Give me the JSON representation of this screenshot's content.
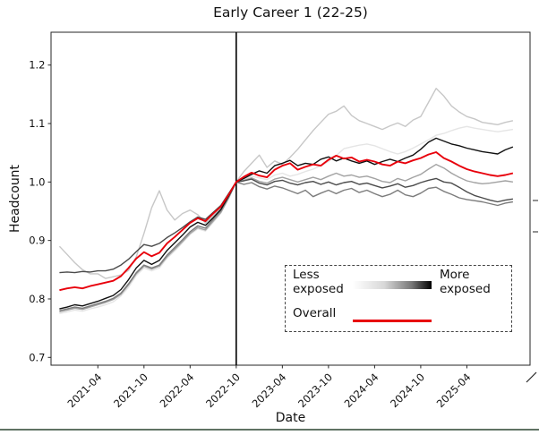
{
  "page": {
    "divider_color": "#5f7264"
  },
  "chart_data": {
    "type": "line",
    "title": "Early Career 1 (22-25)",
    "xlabel": "Date",
    "ylabel": "Headcount",
    "ylim": [
      0.687,
      1.256
    ],
    "grid": false,
    "yticks": [
      0.7,
      0.8,
      0.9,
      1.0,
      1.1,
      1.2
    ],
    "xtick_labels": [
      "2021-04",
      "2021-10",
      "2022-04",
      "2022-10",
      "2023-04",
      "2023-10",
      "2024-04",
      "2024-10",
      "2025-04"
    ],
    "vline_x": "2022-10",
    "legend": {
      "less_label": "Less exposed",
      "more_label": "More exposed",
      "overall_label": "Overall",
      "overall_color": "#e8000b",
      "gradient": [
        "#ffffff",
        "#000000"
      ],
      "position": "lower right",
      "border": "dashed"
    },
    "x_monthly": [
      "2020-11",
      "2020-12",
      "2021-01",
      "2021-02",
      "2021-03",
      "2021-04",
      "2021-05",
      "2021-06",
      "2021-07",
      "2021-08",
      "2021-09",
      "2021-10",
      "2021-11",
      "2021-12",
      "2022-01",
      "2022-02",
      "2022-03",
      "2022-04",
      "2022-05",
      "2022-06",
      "2022-07",
      "2022-08",
      "2022-09",
      "2022-10",
      "2022-11",
      "2022-12",
      "2023-01",
      "2023-02",
      "2023-03",
      "2023-04",
      "2023-05",
      "2023-06",
      "2023-07",
      "2023-08",
      "2023-09",
      "2023-10",
      "2023-11",
      "2023-12",
      "2024-01",
      "2024-02",
      "2024-03",
      "2024-04",
      "2024-05",
      "2024-06",
      "2024-07",
      "2024-08",
      "2024-09",
      "2024-10",
      "2024-11",
      "2024-12",
      "2025-01",
      "2025-02",
      "2025-03",
      "2025-04",
      "2025-05",
      "2025-06",
      "2025-07",
      "2025-08",
      "2025-09",
      "2025-10"
    ],
    "series": [
      {
        "name": "exposure-group-1-least-exposed",
        "color": "#e5e5e5",
        "values": [
          0.775,
          0.778,
          0.781,
          0.779,
          0.783,
          0.786,
          0.79,
          0.795,
          0.805,
          0.82,
          0.84,
          0.853,
          0.848,
          0.853,
          0.87,
          0.882,
          0.896,
          0.91,
          0.92,
          0.916,
          0.931,
          0.947,
          0.972,
          1.0,
          1.005,
          1.01,
          1.007,
          1.004,
          1.012,
          1.015,
          1.01,
          1.013,
          1.018,
          1.022,
          1.028,
          1.035,
          1.045,
          1.057,
          1.06,
          1.063,
          1.065,
          1.062,
          1.057,
          1.052,
          1.048,
          1.052,
          1.058,
          1.065,
          1.072,
          1.08,
          1.083,
          1.088,
          1.092,
          1.095,
          1.092,
          1.09,
          1.088,
          1.086,
          1.088,
          1.09
        ]
      },
      {
        "name": "exposure-group-2",
        "color": "#c7c7c7",
        "values": [
          0.89,
          0.876,
          0.862,
          0.85,
          0.843,
          0.843,
          0.835,
          0.838,
          0.841,
          0.849,
          0.872,
          0.912,
          0.956,
          0.985,
          0.952,
          0.935,
          0.946,
          0.952,
          0.944,
          0.93,
          0.942,
          0.956,
          0.978,
          1.0,
          1.018,
          1.032,
          1.046,
          1.025,
          1.036,
          1.03,
          1.042,
          1.056,
          1.072,
          1.088,
          1.102,
          1.116,
          1.121,
          1.13,
          1.114,
          1.105,
          1.1,
          1.095,
          1.09,
          1.096,
          1.101,
          1.095,
          1.106,
          1.112,
          1.136,
          1.16,
          1.147,
          1.13,
          1.12,
          1.112,
          1.108,
          1.102,
          1.1,
          1.098,
          1.102,
          1.105
        ]
      },
      {
        "name": "exposure-group-3",
        "color": "#a2a2a2",
        "values": [
          0.778,
          0.781,
          0.784,
          0.782,
          0.786,
          0.79,
          0.794,
          0.799,
          0.808,
          0.824,
          0.843,
          0.856,
          0.851,
          0.856,
          0.872,
          0.885,
          0.898,
          0.912,
          0.922,
          0.918,
          0.933,
          0.948,
          0.972,
          1.0,
          1.003,
          1.007,
          1.001,
          0.998,
          1.005,
          1.008,
          1.004,
          1.0,
          1.004,
          1.008,
          1.004,
          1.01,
          1.015,
          1.01,
          1.012,
          1.008,
          1.01,
          1.006,
          1.001,
          0.999,
          1.006,
          1.002,
          1.008,
          1.013,
          1.022,
          1.03,
          1.024,
          1.015,
          1.008,
          1.002,
          0.999,
          0.997,
          0.998,
          1.0,
          1.002,
          1.0
        ]
      },
      {
        "name": "exposure-group-4",
        "color": "#7c7c7c",
        "values": [
          0.78,
          0.783,
          0.786,
          0.784,
          0.788,
          0.792,
          0.796,
          0.801,
          0.81,
          0.826,
          0.845,
          0.858,
          0.853,
          0.858,
          0.875,
          0.888,
          0.901,
          0.915,
          0.925,
          0.921,
          0.936,
          0.951,
          0.974,
          1.0,
          0.996,
          0.999,
          0.992,
          0.988,
          0.993,
          0.99,
          0.985,
          0.98,
          0.986,
          0.975,
          0.981,
          0.986,
          0.98,
          0.986,
          0.989,
          0.982,
          0.986,
          0.98,
          0.975,
          0.979,
          0.986,
          0.978,
          0.975,
          0.981,
          0.989,
          0.991,
          0.984,
          0.979,
          0.973,
          0.97,
          0.968,
          0.966,
          0.963,
          0.96,
          0.964,
          0.966
        ]
      },
      {
        "name": "exposure-group-5",
        "color": "#4b4b4b",
        "values": [
          0.845,
          0.846,
          0.845,
          0.847,
          0.846,
          0.848,
          0.848,
          0.851,
          0.858,
          0.868,
          0.881,
          0.893,
          0.89,
          0.895,
          0.905,
          0.913,
          0.922,
          0.932,
          0.94,
          0.936,
          0.948,
          0.96,
          0.98,
          1.0,
          1.002,
          1.005,
          0.998,
          0.995,
          1.001,
          1.003,
          0.998,
          0.995,
          0.999,
          1.001,
          0.996,
          1.0,
          0.995,
          0.999,
          1.001,
          0.996,
          0.998,
          0.994,
          0.99,
          0.993,
          0.997,
          0.991,
          0.994,
          0.999,
          1.003,
          1.006,
          1.0,
          0.998,
          0.991,
          0.983,
          0.977,
          0.973,
          0.969,
          0.966,
          0.969,
          0.971
        ]
      },
      {
        "name": "exposure-group-6-most-exposed",
        "color": "#111111",
        "values": [
          0.783,
          0.786,
          0.79,
          0.788,
          0.792,
          0.796,
          0.801,
          0.806,
          0.816,
          0.833,
          0.853,
          0.866,
          0.859,
          0.866,
          0.883,
          0.896,
          0.909,
          0.923,
          0.931,
          0.926,
          0.939,
          0.953,
          0.976,
          1.0,
          1.006,
          1.013,
          1.019,
          1.015,
          1.028,
          1.032,
          1.037,
          1.028,
          1.032,
          1.03,
          1.039,
          1.043,
          1.036,
          1.041,
          1.036,
          1.032,
          1.036,
          1.03,
          1.035,
          1.039,
          1.035,
          1.041,
          1.046,
          1.056,
          1.068,
          1.075,
          1.07,
          1.065,
          1.062,
          1.058,
          1.055,
          1.052,
          1.05,
          1.048,
          1.055,
          1.06
        ]
      },
      {
        "name": "overall",
        "color": "#e8000b",
        "values": [
          0.815,
          0.818,
          0.82,
          0.818,
          0.822,
          0.825,
          0.828,
          0.831,
          0.839,
          0.853,
          0.869,
          0.88,
          0.873,
          0.879,
          0.895,
          0.906,
          0.918,
          0.93,
          0.938,
          0.933,
          0.946,
          0.958,
          0.978,
          1.0,
          1.009,
          1.016,
          1.011,
          1.008,
          1.021,
          1.028,
          1.032,
          1.021,
          1.026,
          1.03,
          1.028,
          1.038,
          1.045,
          1.04,
          1.042,
          1.035,
          1.038,
          1.035,
          1.03,
          1.028,
          1.035,
          1.032,
          1.037,
          1.041,
          1.047,
          1.051,
          1.041,
          1.035,
          1.028,
          1.022,
          1.018,
          1.015,
          1.012,
          1.01,
          1.012,
          1.015
        ]
      }
    ]
  }
}
